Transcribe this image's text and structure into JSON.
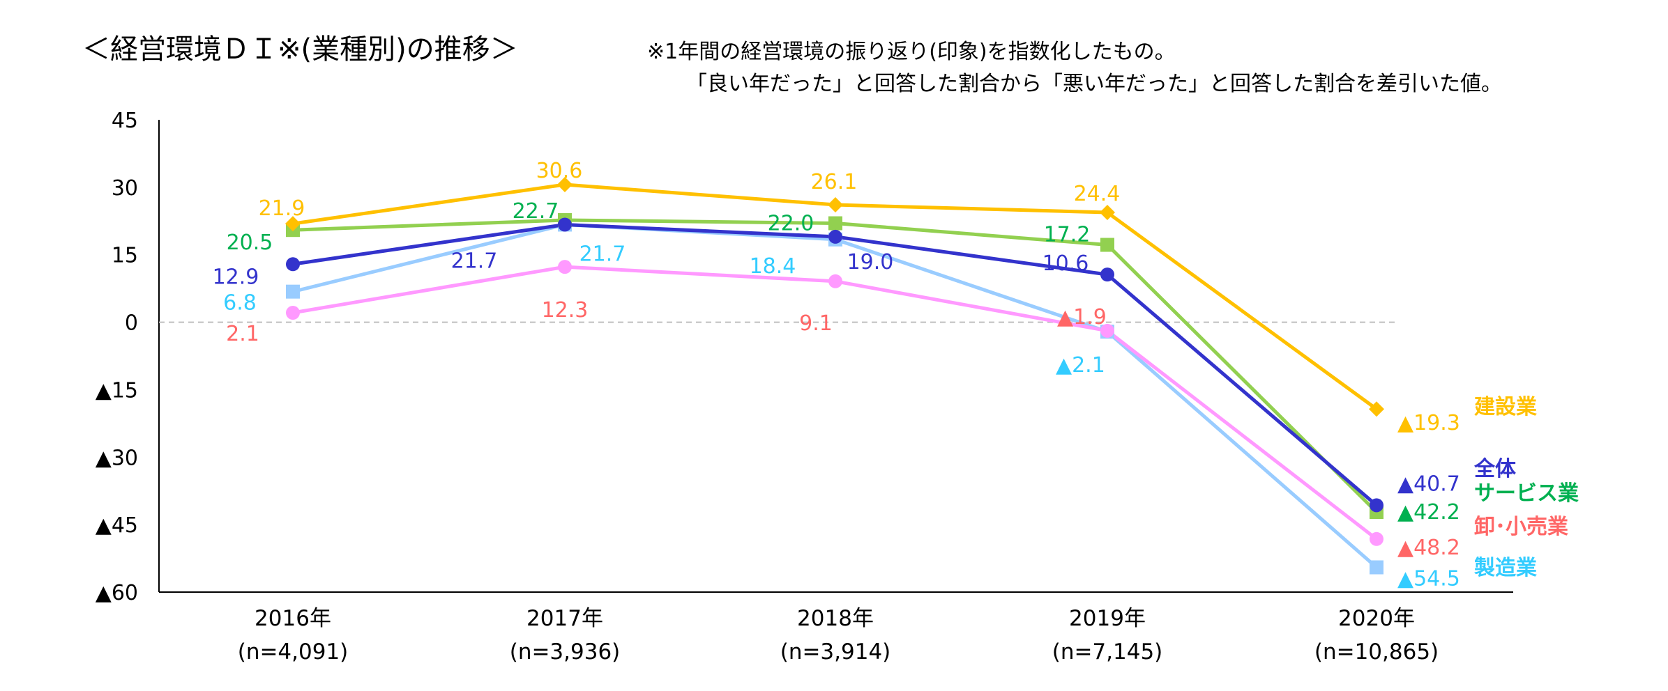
{
  "chart_data": {
    "type": "line",
    "title": "＜経営環境ＤＩ※(業種別)の推移＞",
    "note": [
      "※1年間の経営環境の振り返り(印象)を指数化したもの。",
      "「良い年だった」と回答した割合から「悪い年だった」と回答した割合を差引いた値。"
    ],
    "categories": [
      [
        "2016年",
        "(n=4,091)"
      ],
      [
        "2017年",
        "(n=3,936)"
      ],
      [
        "2018年",
        "(n=3,914)"
      ],
      [
        "2019年",
        "(n=7,145)"
      ],
      [
        "2020年",
        "(n=10,865)"
      ]
    ],
    "ylim": [
      -60,
      45
    ],
    "yticks": [
      {
        "value": 45,
        "label": "45"
      },
      {
        "value": 30,
        "label": "30"
      },
      {
        "value": 15,
        "label": "15"
      },
      {
        "value": 0,
        "label": "0"
      },
      {
        "value": -15,
        "label": "▲15"
      },
      {
        "value": -30,
        "label": "▲30"
      },
      {
        "value": -45,
        "label": "▲45"
      },
      {
        "value": -60,
        "label": "▲60"
      }
    ],
    "zero_line": "dashed",
    "series": [
      {
        "name": "建設業",
        "color": "#FFC000",
        "label_color": "#FFC000",
        "marker": "diamond",
        "values": [
          21.9,
          30.6,
          26.1,
          24.4,
          -19.3
        ],
        "labels": [
          "21.9",
          "30.6",
          "26.1",
          "24.4",
          "▲19.3"
        ]
      },
      {
        "name": "全体",
        "color": "#3333CC",
        "label_color": "#3333CC",
        "marker": "circle",
        "values": [
          12.9,
          21.7,
          19.0,
          10.6,
          -40.7
        ],
        "labels": [
          "12.9",
          "21.7",
          "19.0",
          "10.6",
          "▲40.7"
        ]
      },
      {
        "name": "サービス業",
        "color": "#92D050",
        "label_color": "#00B050",
        "marker": "square",
        "values": [
          20.5,
          22.7,
          22.0,
          17.2,
          -42.2
        ],
        "labels": [
          "20.5",
          "22.7",
          "22.0",
          "17.2",
          "▲42.2"
        ]
      },
      {
        "name": "卸･小売業",
        "color": "#FF99FF",
        "label_color": "#FF6666",
        "marker": "circle",
        "values": [
          2.1,
          12.3,
          9.1,
          -1.9,
          -48.2
        ],
        "labels": [
          "2.1",
          "12.3",
          "9.1",
          "▲1.9",
          "▲48.2"
        ]
      },
      {
        "name": "製造業",
        "color": "#99CCFF",
        "label_color": "#33CCFF",
        "marker": "square",
        "values": [
          6.8,
          21.7,
          18.4,
          -2.1,
          -54.5
        ],
        "labels": [
          "6.8",
          "21.7",
          "18.4",
          "▲2.1",
          "▲54.5"
        ]
      }
    ]
  }
}
